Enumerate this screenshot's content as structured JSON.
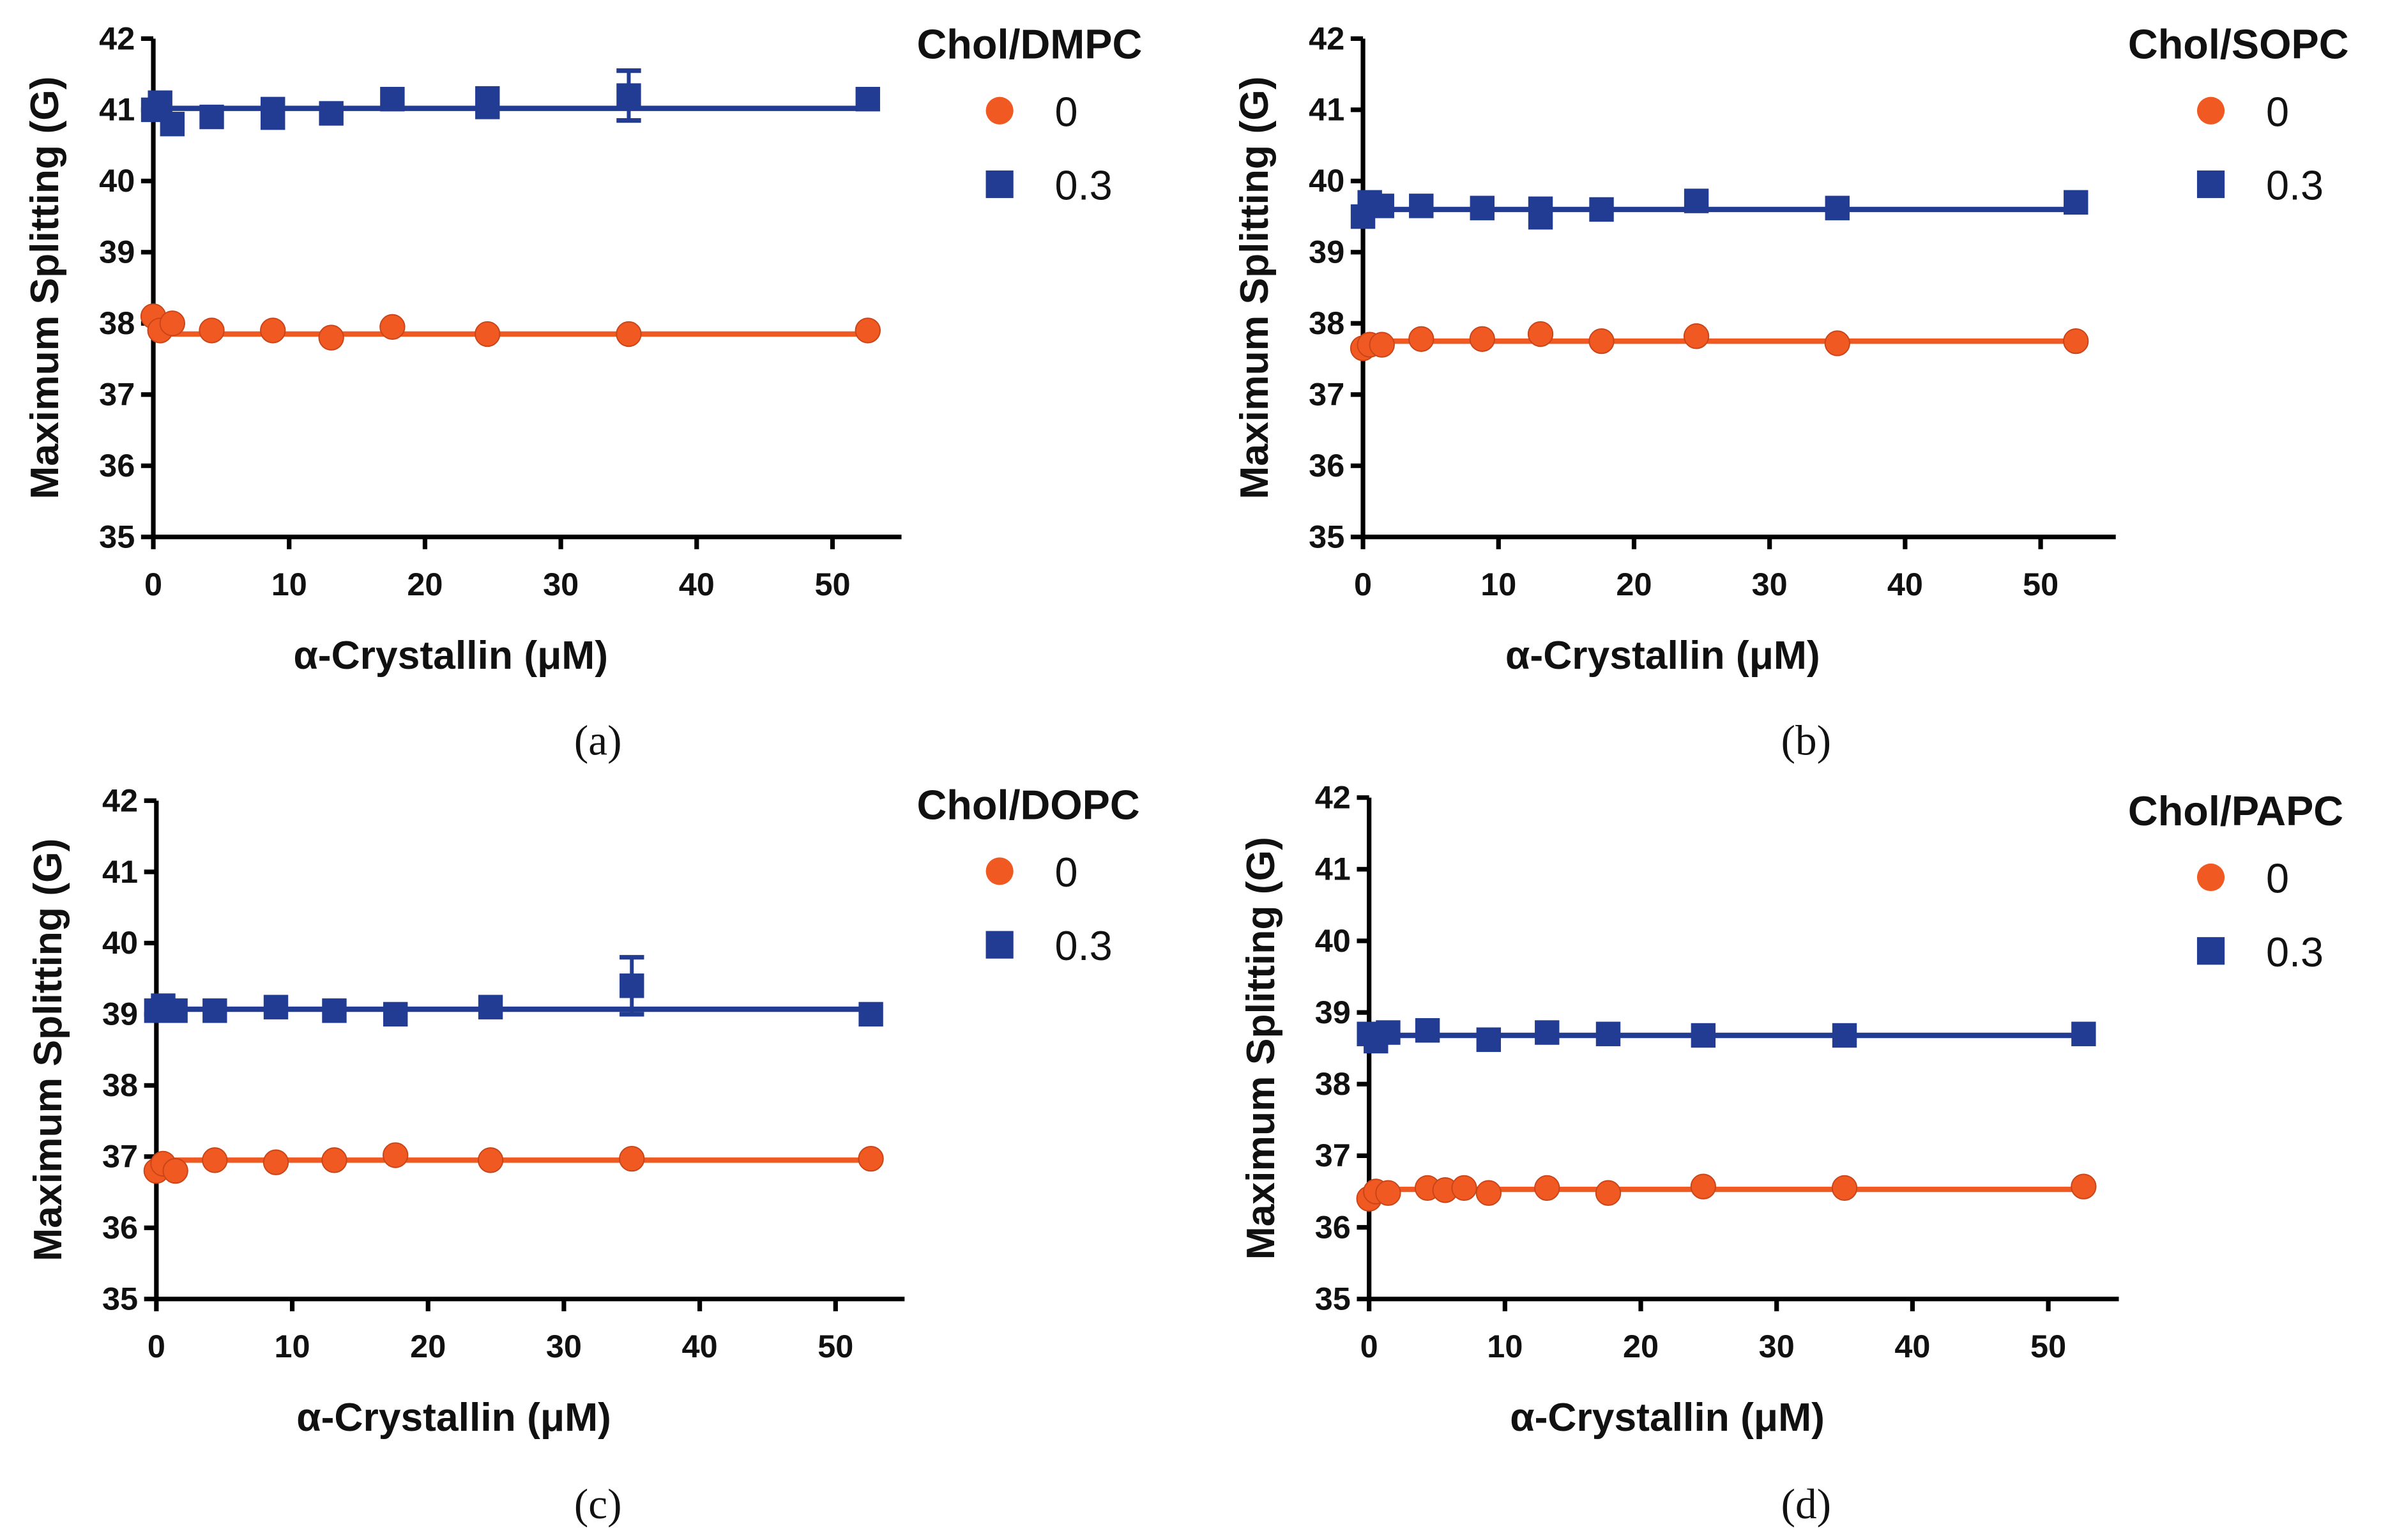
{
  "colors": {
    "series_0": "#f05a22",
    "series_03": "#223c94",
    "axis": "#000000"
  },
  "chart_data": [
    {
      "type": "scatter",
      "caption": "(a)",
      "legend_title": "Chol/DMPC",
      "legend_placement": "top-right",
      "xlabel": "α-Crystallin (μM)",
      "ylabel": "Maximum Splitting (G)",
      "xlim": [
        0,
        55
      ],
      "ylim": [
        35,
        42
      ],
      "xticks": [
        "0",
        "10",
        "20",
        "30",
        "40",
        "50"
      ],
      "yticks": [
        "35",
        "36",
        "37",
        "38",
        "39",
        "40",
        "41",
        "42"
      ],
      "series": [
        {
          "name": "0",
          "marker": "circle",
          "x": [
            0,
            0.5,
            1.4,
            4.3,
            8.8,
            13.1,
            17.6,
            24.6,
            35,
            52.6
          ],
          "y": [
            38.1,
            37.9,
            38.0,
            37.9,
            37.9,
            37.8,
            37.95,
            37.85,
            37.85,
            37.9
          ],
          "fit": 37.85
        },
        {
          "name": "0.3",
          "marker": "square",
          "x": [
            0,
            0.5,
            1.4,
            4.3,
            8.8,
            13.1,
            17.6,
            24.6,
            35,
            52.6
          ],
          "y": [
            41.0,
            41.1,
            40.8,
            40.9,
            40.95,
            40.95,
            41.15,
            41.1,
            41.2,
            41.15
          ],
          "err": [
            0,
            0,
            0,
            0,
            0.2,
            0,
            0,
            0.2,
            0.35,
            0
          ],
          "fit": 41.02
        }
      ]
    },
    {
      "type": "scatter",
      "caption": "(b)",
      "legend_title": "Chol/SOPC",
      "legend_placement": "top-right",
      "xlabel": "α-Crystallin (μM)",
      "ylabel": "Maximum Splitting (G)",
      "xlim": [
        0,
        55
      ],
      "ylim": [
        35,
        42
      ],
      "xticks": [
        "0",
        "10",
        "20",
        "30",
        "40",
        "50"
      ],
      "yticks": [
        "35",
        "36",
        "37",
        "38",
        "39",
        "40",
        "41",
        "42"
      ],
      "series": [
        {
          "name": "0",
          "marker": "circle",
          "x": [
            0,
            0.5,
            1.4,
            4.3,
            8.8,
            13.1,
            17.6,
            24.6,
            35,
            52.6
          ],
          "y": [
            37.65,
            37.7,
            37.7,
            37.78,
            37.78,
            37.85,
            37.75,
            37.82,
            37.72,
            37.75
          ],
          "fit": 37.75
        },
        {
          "name": "0.3",
          "marker": "square",
          "x": [
            0,
            0.5,
            1.4,
            4.3,
            8.8,
            13.1,
            17.6,
            24.6,
            35,
            52.6
          ],
          "y": [
            39.5,
            39.7,
            39.65,
            39.65,
            39.62,
            39.55,
            39.6,
            39.72,
            39.62,
            39.7
          ],
          "err": [
            0,
            0,
            0,
            0,
            0,
            0.2,
            0,
            0,
            0,
            0
          ],
          "fit": 39.6
        }
      ]
    },
    {
      "type": "scatter",
      "caption": "(c)",
      "legend_title": "Chol/DOPC",
      "legend_placement": "top-right",
      "xlabel": "α-Crystallin (μM)",
      "ylabel": "Maximum Splitting (G)",
      "xlim": [
        0,
        55
      ],
      "ylim": [
        35,
        42
      ],
      "xticks": [
        "0",
        "10",
        "20",
        "30",
        "40",
        "50"
      ],
      "yticks": [
        "35",
        "36",
        "37",
        "38",
        "39",
        "40",
        "41",
        "42"
      ],
      "series": [
        {
          "name": "0",
          "marker": "circle",
          "x": [
            0,
            0.5,
            1.4,
            4.3,
            8.8,
            13.1,
            17.6,
            24.6,
            35,
            52.6
          ],
          "y": [
            36.8,
            36.9,
            36.8,
            36.95,
            36.92,
            36.95,
            37.02,
            36.95,
            36.97,
            36.97
          ],
          "fit": 36.95
        },
        {
          "name": "0.3",
          "marker": "square",
          "x": [
            0,
            0.5,
            1.4,
            4.3,
            8.8,
            13.1,
            17.6,
            24.6,
            35,
            52.6
          ],
          "y": [
            39.05,
            39.12,
            39.05,
            39.05,
            39.1,
            39.05,
            39.0,
            39.1,
            39.4,
            39.0
          ],
          "err": [
            0,
            0,
            0,
            0,
            0,
            0,
            0,
            0,
            0.4,
            0
          ],
          "fit": 39.07
        }
      ]
    },
    {
      "type": "scatter",
      "caption": "(d)",
      "legend_title": "Chol/PAPC",
      "legend_placement": "top-right",
      "xlabel": "α-Crystallin (μM)",
      "ylabel": "Maximum Splitting (G)",
      "xlim": [
        0,
        55
      ],
      "ylim": [
        35,
        42
      ],
      "xticks": [
        "0",
        "10",
        "20",
        "30",
        "40",
        "50"
      ],
      "yticks": [
        "35",
        "36",
        "37",
        "38",
        "39",
        "40",
        "41",
        "42"
      ],
      "series": [
        {
          "name": "0",
          "marker": "circle",
          "x": [
            0,
            0.5,
            1.4,
            4.3,
            5.6,
            7.0,
            8.8,
            13.1,
            17.6,
            24.6,
            35,
            52.6
          ],
          "y": [
            36.4,
            36.5,
            36.48,
            36.55,
            36.52,
            36.55,
            36.48,
            36.55,
            36.48,
            36.57,
            36.55,
            36.57
          ],
          "fit": 36.53
        },
        {
          "name": "0.3",
          "marker": "square",
          "x": [
            0,
            0.5,
            1.4,
            4.3,
            8.8,
            13.1,
            17.6,
            24.6,
            35,
            52.6
          ],
          "y": [
            38.7,
            38.6,
            38.72,
            38.75,
            38.62,
            38.72,
            38.7,
            38.68,
            38.68,
            38.7
          ],
          "err": [
            0,
            0,
            0,
            0,
            0,
            0,
            0,
            0,
            0,
            0
          ],
          "fit": 38.68
        }
      ]
    }
  ]
}
